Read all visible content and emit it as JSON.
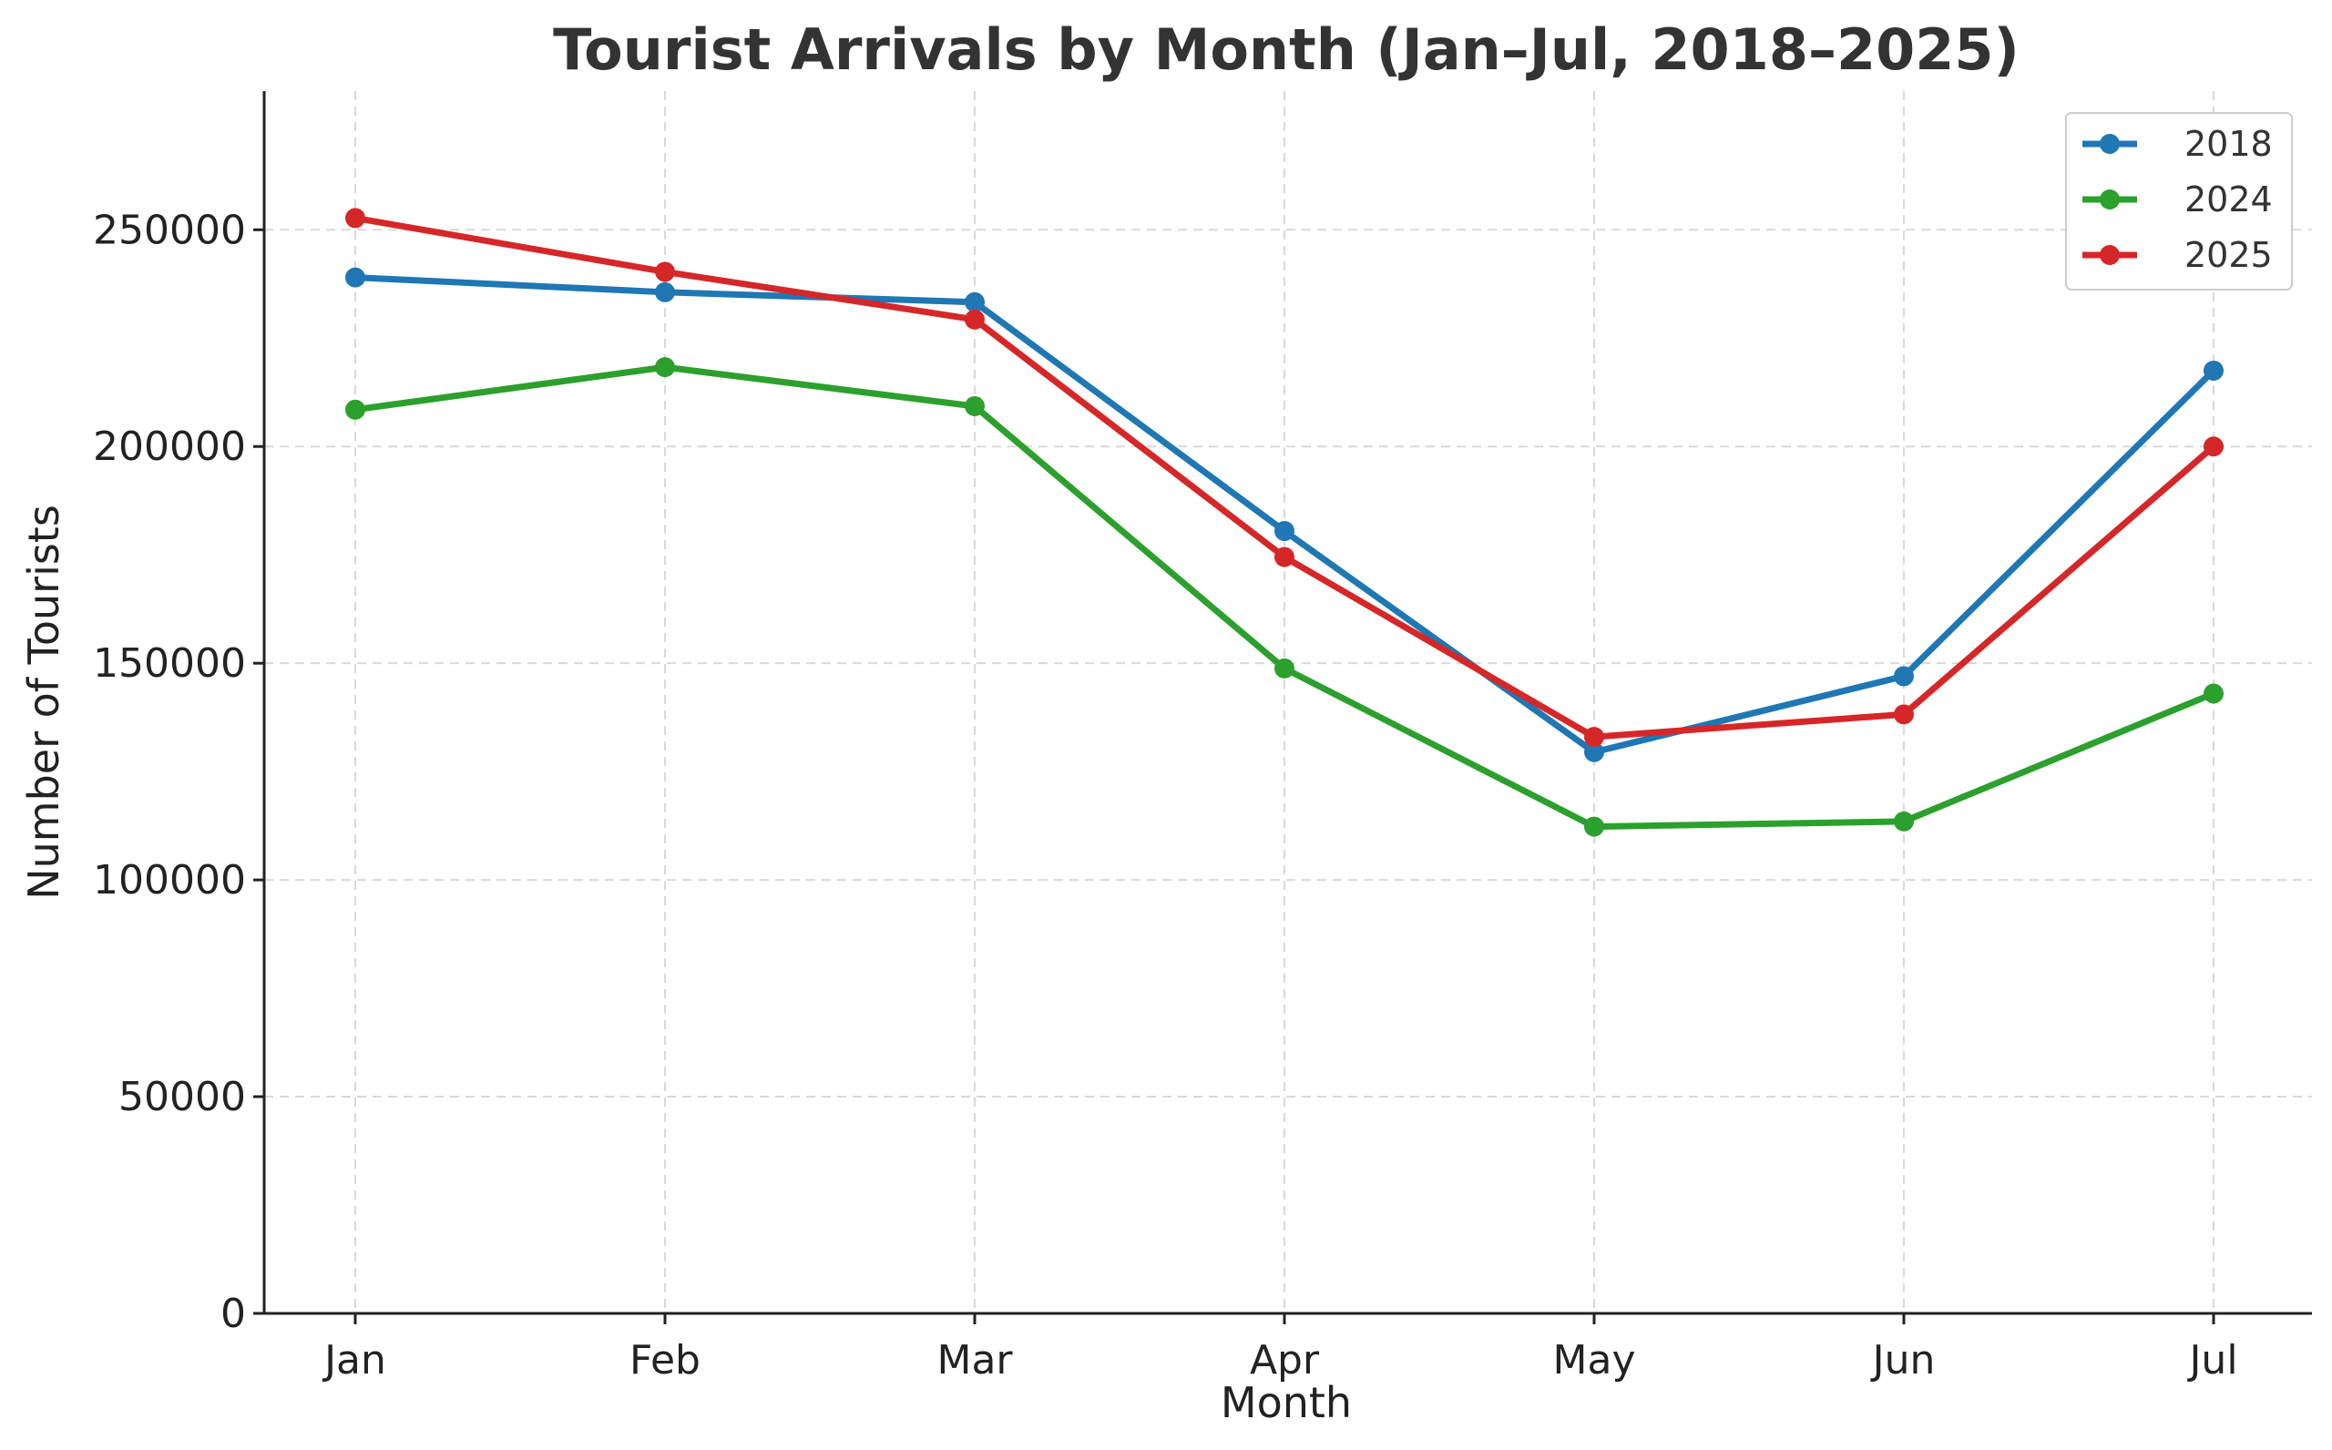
{
  "chart_data": {
    "type": "line",
    "title": "Tourist Arrivals by Month (Jan–Jul, 2018–2025)",
    "xlabel": "Month",
    "ylabel": "Number of Tourists",
    "categories": [
      "Jan",
      "Feb",
      "Mar",
      "Apr",
      "May",
      "Jun",
      "Jul"
    ],
    "ylim": [
      0,
      282000
    ],
    "yticks": [
      0,
      50000,
      100000,
      150000,
      200000,
      250000
    ],
    "ytick_labels": [
      "0",
      "50000",
      "100000",
      "150000",
      "200000",
      "250000"
    ],
    "grid": true,
    "legend_position": "top-right",
    "series": [
      {
        "name": "2018",
        "color": "#1f77b4",
        "values": [
          239000,
          235600,
          233300,
          180500,
          129500,
          147000,
          217500
        ]
      },
      {
        "name": "2024",
        "color": "#2ca02c",
        "values": [
          208500,
          218300,
          209300,
          148800,
          112300,
          113500,
          143000
        ]
      },
      {
        "name": "2025",
        "color": "#d62728",
        "values": [
          252700,
          240300,
          229300,
          174500,
          133000,
          138200,
          200000
        ]
      }
    ]
  }
}
